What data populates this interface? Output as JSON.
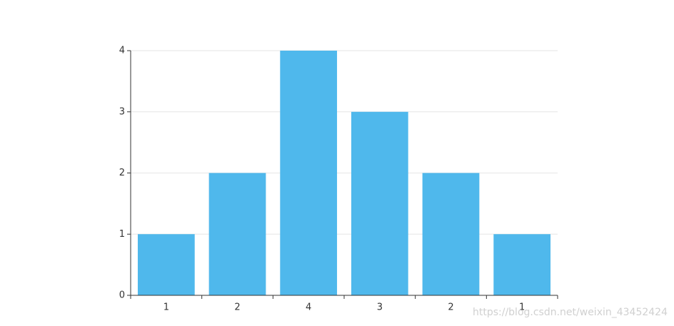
{
  "chart_data": {
    "type": "bar",
    "categories": [
      "1",
      "2",
      "4",
      "3",
      "2",
      "1"
    ],
    "values": [
      1,
      2,
      4,
      3,
      2,
      1
    ],
    "color": "#4fb8ec",
    "ylim": [
      0,
      4
    ],
    "yticks": [
      0,
      1,
      2,
      3,
      4
    ],
    "grid": true,
    "watermark": "https://blog.csdn.net/weixin_43452424"
  }
}
